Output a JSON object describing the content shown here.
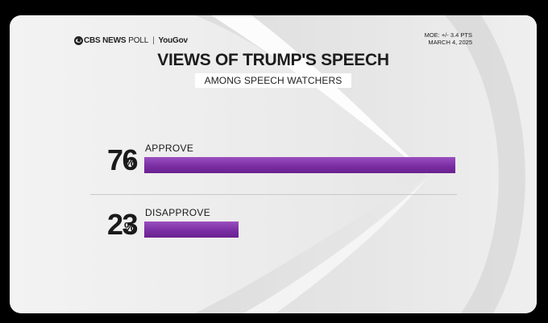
{
  "header": {
    "brand": "CBS NEWS",
    "poll": "POLL",
    "separator": "|",
    "partner": "YouGov",
    "moe": "MOE: +/- 3.4 PTS",
    "date": "MARCH 4, 2025"
  },
  "chart_data": {
    "type": "bar",
    "orientation": "horizontal",
    "title": "VIEWS OF TRUMP'S SPEECH",
    "subtitle": "AMONG SPEECH WATCHERS",
    "categories": [
      "APPROVE",
      "DISAPPROVE"
    ],
    "values": [
      76,
      23
    ],
    "value_suffix": "%",
    "xlim": [
      0,
      100
    ],
    "bar_color": "#7a2ea3",
    "grid": false
  },
  "display": {
    "approve_value": "76",
    "disapprove_value": "23",
    "percent_sign": "%"
  }
}
